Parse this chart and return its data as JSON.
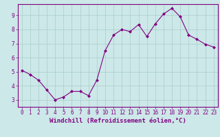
{
  "x": [
    0,
    1,
    2,
    3,
    4,
    5,
    6,
    7,
    8,
    9,
    10,
    11,
    12,
    13,
    14,
    15,
    16,
    17,
    18,
    19,
    20,
    21,
    22,
    23
  ],
  "y": [
    5.1,
    4.8,
    4.4,
    3.7,
    3.0,
    3.2,
    3.6,
    3.6,
    3.3,
    4.4,
    6.5,
    7.6,
    8.0,
    7.85,
    8.35,
    7.5,
    8.4,
    9.1,
    9.5,
    8.9,
    7.6,
    7.3,
    6.95,
    6.75
  ],
  "line_color": "#800080",
  "marker": "D",
  "marker_size": 2.0,
  "bg_color": "#cce8e8",
  "grid_color": "#aacccc",
  "xlabel": "Windchill (Refroidissement éolien,°C)",
  "xlim": [
    -0.5,
    23.5
  ],
  "ylim": [
    2.5,
    9.8
  ],
  "yticks": [
    3,
    4,
    5,
    6,
    7,
    8,
    9
  ],
  "xticks": [
    0,
    1,
    2,
    3,
    4,
    5,
    6,
    7,
    8,
    9,
    10,
    11,
    12,
    13,
    14,
    15,
    16,
    17,
    18,
    19,
    20,
    21,
    22,
    23
  ],
  "tick_fontsize": 5.5,
  "xlabel_fontsize": 6.5,
  "tick_color": "#800080",
  "spine_color": "#800080",
  "linewidth": 0.8
}
